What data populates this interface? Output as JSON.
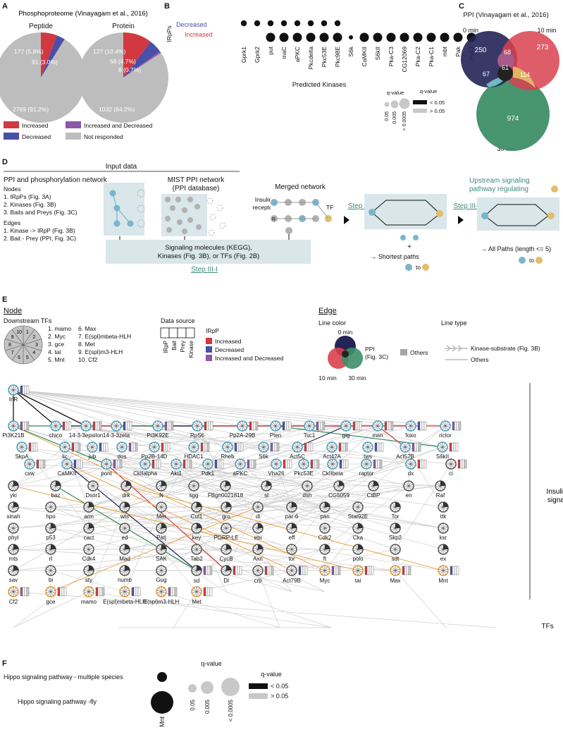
{
  "panel_letters": [
    "A",
    "B",
    "C",
    "D",
    "E",
    "F"
  ],
  "A": {
    "title": "Phosphoproteome (Vinayagam et al., 2016)",
    "chart_data": [
      {
        "type": "pie",
        "title": "Peptide",
        "slices": [
          {
            "label": "Increased",
            "value": 177,
            "text": "177 (5.8%)",
            "color": "#d2383f"
          },
          {
            "label": "Decreased",
            "value": 91,
            "text": "91 (3.0%)",
            "color": "#4a4fa8"
          },
          {
            "label": "Not responded",
            "value": 2769,
            "text": "2769 (91.2%)",
            "color": "#bdbdbd"
          }
        ]
      },
      {
        "type": "pie",
        "title": "Protein",
        "slices": [
          {
            "label": "Increased",
            "value": 127,
            "text": "127 (10.4%)",
            "color": "#d2383f"
          },
          {
            "label": "Decreased",
            "value": 58,
            "text": "58 (4.7%)",
            "color": "#4a4fa8"
          },
          {
            "label": "Increased and Decreased",
            "value": 8,
            "text": "8 (0.7%)",
            "color": "#8e56a8"
          },
          {
            "label": "Not responded",
            "value": 1032,
            "text": "1032 (84.2%)",
            "color": "#bdbdbd"
          }
        ]
      }
    ],
    "legend": [
      {
        "label": "Increased",
        "color": "#d2383f"
      },
      {
        "label": "Increased and Decreased",
        "color": "#8e56a8"
      },
      {
        "label": "Decreased",
        "color": "#4a4fa8"
      },
      {
        "label": "Not responded",
        "color": "#bdbdbd"
      }
    ]
  },
  "B": {
    "row_label": "IRpPs",
    "decreased_label": "Decreased",
    "increased_label": "Increased",
    "xlabel": "Predicted Kinases",
    "kinases": [
      "Gprk1",
      "Gprk2",
      "put",
      "inaC",
      "aPKC",
      "Pkcdelta",
      "Pkc53E",
      "Pkc98E",
      "S6k",
      "CaMKII",
      "S6kII",
      "Pka-C3",
      "CG12069",
      "Pka-C2",
      "Pka-C1",
      "mbt",
      "Pak",
      "Pak3"
    ],
    "decreased_dots": [
      1,
      1,
      1,
      1,
      1,
      1,
      1,
      1,
      0,
      0,
      0,
      0,
      0,
      0,
      0,
      0,
      0,
      0
    ],
    "increased_dots": [
      0,
      0,
      1,
      1,
      1,
      1,
      1,
      1,
      2,
      1,
      1,
      1,
      1,
      1,
      1,
      1,
      1,
      1
    ],
    "size_title": "q-value",
    "size_labels": [
      "0.05",
      "0.005",
      "< 0.0005"
    ],
    "color_title": "q-value",
    "color_labels": [
      "< 0.05",
      "> 0.05"
    ]
  },
  "C": {
    "title": "PPI (Vinayagam et al., 2016)",
    "labels": {
      "t0": "0 min",
      "t10": "10 min",
      "t30": "30 min"
    },
    "values": {
      "only0": "250",
      "only10": "273",
      "only30": "974",
      "ab": "68",
      "abc": "61",
      "ac": "67",
      "bc": "114"
    }
  },
  "D": {
    "input_data": "Input data",
    "net_title": "PPI and phosphorylation network",
    "nodes_title": "Nodes",
    "nodes": [
      "1. IRpPs (Fig. 3A)",
      "2. Kinases (Fig. 3B)",
      "3. Baits and Preys (Fig. 3C)"
    ],
    "edges_title": "Edges",
    "edges": [
      "1. Kinase -> IRpP (Fig. 3B)",
      "2. Bait - Prey (PPI, Fig. 3C)"
    ],
    "mist_title": "MIST PPI network",
    "mist_sub": "(PPI database)",
    "merged": "Merged network",
    "insulin": "Insulin",
    "receptor": "receptor",
    "tf": "TF",
    "r": "R",
    "step2": "Step III-II",
    "step3": "Step III-III",
    "upstream1": "Upstream signaling",
    "upstream2": "pathway regulating",
    "signal1": "Signaling molecules (KEGG),",
    "signal2": "Kinases (Fig. 3B), or TFs (Fig. 2B)",
    "step1": "Step III-I",
    "plus": "+",
    "shortest": "→ Shortest paths",
    "to": "to",
    "allpaths": "→ All Paths (length <= 5)"
  },
  "E": {
    "node_title": "Node",
    "downstream": "Downstream TFs",
    "tf_list": [
      "1. mamo",
      "2. Myc",
      "3. gce",
      "4. tai",
      "5. Mnt",
      "6. Max",
      "7. E(spl)mbeta-HLH",
      "8. Met",
      "9. E(spl)m3-HLH",
      "10. Cf2"
    ],
    "data_source": "Data source",
    "ds_cols": [
      "IRpP",
      "Bait",
      "Prey",
      "Kinase"
    ],
    "irpp": "IRpP",
    "irpp_legend": [
      {
        "label": "Increased",
        "color": "#d2383f"
      },
      {
        "label": "Decreased",
        "color": "#4a4fa8"
      },
      {
        "label": "Increased and Decreased",
        "color": "#8e56a8"
      }
    ],
    "edge_title": "Edge",
    "line_color": "Line color",
    "line_type": "Line type",
    "t0": "0 min",
    "ppi": "PPI",
    "fig3c": "(Fig. 3C)",
    "t10": "10 min",
    "t30": "30 min",
    "others": "Others",
    "ks": "Kinase-substrate (Fig. 3B)",
    "others2": "Others",
    "insulin_signal": "Insulin signal",
    "tfs": "TFs",
    "nodes": [
      {
        "n": "InR",
        "ring": "#4aa3c9"
      },
      {
        "n": "Pi3K21B",
        "ring": "#4aa3c9"
      },
      {
        "n": "chico",
        "ring": "#4aa3c9"
      },
      {
        "n": "14-3-3epsilon",
        "ring": "#4aa3c9"
      },
      {
        "n": "14-3-3zeta",
        "ring": "#4aa3c9"
      },
      {
        "n": "Pi3K92E",
        "ring": "#4aa3c9"
      },
      {
        "n": "RpS6",
        "ring": "#4aa3c9"
      },
      {
        "n": "Pp2A-29B",
        "ring": "#4aa3c9"
      },
      {
        "n": "Pten",
        "ring": "#4aa3c9"
      },
      {
        "n": "Tsc1",
        "ring": "#4aa3c9"
      },
      {
        "n": "gig",
        "ring": "#4aa3c9"
      },
      {
        "n": "msn",
        "ring": "#4aa3c9"
      },
      {
        "n": "foxo",
        "ring": "#4aa3c9"
      },
      {
        "n": "rictor",
        "ring": "#4aa3c9"
      },
      {
        "n": "SkpA",
        "ring": "#4aa3c9"
      },
      {
        "n": "lic",
        "ring": "#4aa3c9"
      },
      {
        "n": "jub",
        "ring": "#4aa3c9"
      },
      {
        "n": "dos",
        "ring": "#4aa3c9"
      },
      {
        "n": "Pp2B-14D",
        "ring": "#4aa3c9"
      },
      {
        "n": "HDAC1",
        "ring": "#4aa3c9"
      },
      {
        "n": "Rheb",
        "ring": "#4aa3c9"
      },
      {
        "n": "S6k",
        "ring": "#4aa3c9"
      },
      {
        "n": "Act5C",
        "ring": "#4aa3c9"
      },
      {
        "n": "Act42A",
        "ring": "#4aa3c9"
      },
      {
        "n": "tws",
        "ring": "#4aa3c9"
      },
      {
        "n": "Act57B",
        "ring": "#4aa3c9"
      },
      {
        "n": "S6kII",
        "ring": "#4aa3c9"
      },
      {
        "n": "csw",
        "ring": "#4aa3c9"
      },
      {
        "n": "CaMKII",
        "ring": "#4aa3c9"
      },
      {
        "n": "pont",
        "ring": "#4aa3c9"
      },
      {
        "n": "CkIIalpha",
        "ring": "#4aa3c9"
      },
      {
        "n": "Akt1",
        "ring": "#4aa3c9"
      },
      {
        "n": "Pdk1",
        "ring": "#4aa3c9"
      },
      {
        "n": "aPKC",
        "ring": "#4aa3c9"
      },
      {
        "n": "Vha26",
        "ring": "#4aa3c9"
      },
      {
        "n": "Pkc53E",
        "ring": "#4aa3c9"
      },
      {
        "n": "CkIIbeta",
        "ring": "#4aa3c9"
      },
      {
        "n": "raptor",
        "ring": "#4aa3c9"
      },
      {
        "n": "dx",
        "ring": "#4aa3c9"
      },
      {
        "n": "ci",
        "ring": "#555"
      },
      {
        "n": "yki",
        "ring": "#555"
      },
      {
        "n": "baz",
        "ring": "#555"
      },
      {
        "n": "Dsor1",
        "ring": "#555"
      },
      {
        "n": "drk",
        "ring": "#555"
      },
      {
        "n": "N",
        "ring": "#555"
      },
      {
        "n": "sgg",
        "ring": "#555"
      },
      {
        "n": "FBgn0021818",
        "ring": "#555"
      },
      {
        "n": "sl",
        "ring": "#555"
      },
      {
        "n": "dsh",
        "ring": "#555"
      },
      {
        "n": "CG5059",
        "ring": "#555"
      },
      {
        "n": "CtBP",
        "ring": "#555"
      },
      {
        "n": "en",
        "ring": "#555"
      },
      {
        "n": "Raf",
        "ring": "#555"
      },
      {
        "n": "sinah",
        "ring": "#555"
      },
      {
        "n": "hpo",
        "ring": "#555"
      },
      {
        "n": "arm",
        "ring": "#555"
      },
      {
        "n": "wts",
        "ring": "#555"
      },
      {
        "n": "Mer",
        "ring": "#555"
      },
      {
        "n": "Cul1",
        "ring": "#555"
      },
      {
        "n": "gro",
        "ring": "#555"
      },
      {
        "n": "dl",
        "ring": "#555"
      },
      {
        "n": "par-6",
        "ring": "#555"
      },
      {
        "n": "pan",
        "ring": "#555"
      },
      {
        "n": "Stat92E",
        "ring": "#555"
      },
      {
        "n": "Tor",
        "ring": "#555"
      },
      {
        "n": "ttk",
        "ring": "#555"
      },
      {
        "n": "phyl",
        "ring": "#555"
      },
      {
        "n": "p53",
        "ring": "#555"
      },
      {
        "n": "cact",
        "ring": "#555"
      },
      {
        "n": "ed",
        "ring": "#555"
      },
      {
        "n": "Patj",
        "ring": "#555"
      },
      {
        "n": "key",
        "ring": "#555"
      },
      {
        "n": "PGRP-LE",
        "ring": "#555"
      },
      {
        "n": "ebi",
        "ring": "#555"
      },
      {
        "n": "eff",
        "ring": "#555"
      },
      {
        "n": "Cdk2",
        "ring": "#555"
      },
      {
        "n": "Cka",
        "ring": "#555"
      },
      {
        "n": "Skp2",
        "ring": "#555"
      },
      {
        "n": "ksr",
        "ring": "#555"
      },
      {
        "n": "mts",
        "ring": "#555"
      },
      {
        "n": "rl",
        "ring": "#555"
      },
      {
        "n": "Cdk4",
        "ring": "#555"
      },
      {
        "n": "Mad",
        "ring": "#555"
      },
      {
        "n": "SAK",
        "ring": "#555"
      },
      {
        "n": "Tab2",
        "ring": "#555"
      },
      {
        "n": "CycB",
        "ring": "#555"
      },
      {
        "n": "Axn",
        "ring": "#555"
      },
      {
        "n": "tor",
        "ring": "#555"
      },
      {
        "n": "ft",
        "ring": "#555"
      },
      {
        "n": "polo",
        "ring": "#555"
      },
      {
        "n": "sdt",
        "ring": "#555"
      },
      {
        "n": "ex",
        "ring": "#555"
      },
      {
        "n": "sav",
        "ring": "#555"
      },
      {
        "n": "bi",
        "ring": "#555"
      },
      {
        "n": "sty",
        "ring": "#555"
      },
      {
        "n": "numb",
        "ring": "#555"
      },
      {
        "n": "Gug",
        "ring": "#555"
      },
      {
        "n": "sd",
        "ring": "#555"
      },
      {
        "n": "Dl",
        "ring": "#555"
      },
      {
        "n": "crb",
        "ring": "#555"
      },
      {
        "n": "Act79B",
        "ring": "#555"
      },
      {
        "n": "Myc",
        "ring": "#e69a2e"
      },
      {
        "n": "tai",
        "ring": "#e69a2e"
      },
      {
        "n": "Max",
        "ring": "#e69a2e"
      },
      {
        "n": "Mnt",
        "ring": "#e69a2e"
      },
      {
        "n": "Cf2",
        "ring": "#e69a2e"
      },
      {
        "n": "gce",
        "ring": "#e69a2e"
      },
      {
        "n": "mamo",
        "ring": "#e69a2e"
      },
      {
        "n": "E(spl)mbeta-HLH",
        "ring": "#e69a2e"
      },
      {
        "n": "E(spl)m3-HLH",
        "ring": "#e69a2e"
      },
      {
        "n": "Met",
        "ring": "#e69a2e"
      }
    ]
  },
  "F": {
    "rows": [
      "Hippo signaling pathway - multiple species",
      "Hippo signaling pathway -fly"
    ],
    "xlabel": "Mnt",
    "size_title": "q-value",
    "size_labels": [
      "0.05",
      "0.005",
      "< 0.0005"
    ],
    "color_title": "q-value",
    "color_labels": [
      "< 0.05",
      "> 0.05"
    ]
  }
}
